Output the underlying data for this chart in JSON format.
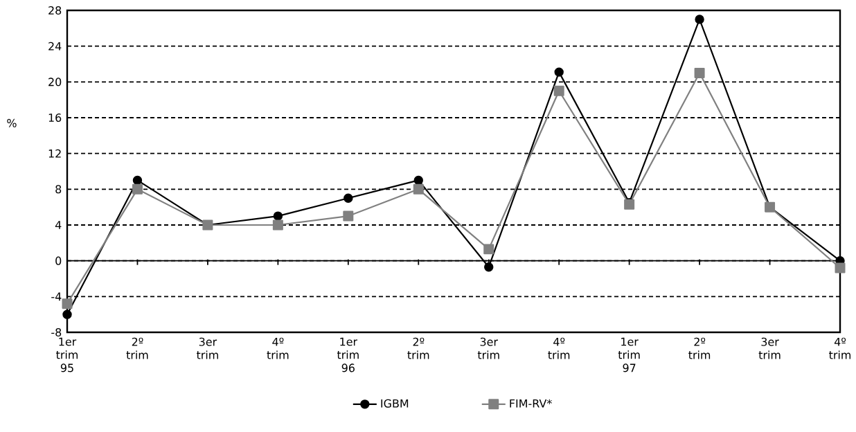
{
  "chart_data": {
    "type": "line",
    "ylabel": "%",
    "categories": [
      "1er trim 95",
      "2º trim",
      "3er trim",
      "4º trim",
      "1er trim 96",
      "2º trim",
      "3er trim",
      "4º trim",
      "1er trim 97",
      "2º trim",
      "3er trim",
      "4º trim"
    ],
    "series": [
      {
        "name": "IGBM",
        "color": "#000000",
        "marker": "circle",
        "values": [
          -6,
          9,
          4,
          5,
          7,
          9,
          -0.7,
          21.1,
          6.5,
          27,
          6,
          0
        ]
      },
      {
        "name": "FIM-RV*",
        "color": "#808080",
        "marker": "square",
        "values": [
          -4.8,
          8,
          4,
          4,
          5,
          8,
          1.3,
          19,
          6.3,
          21,
          6,
          -0.8
        ]
      }
    ],
    "ylim": [
      -8,
      28
    ],
    "yticks": [
      -8,
      -4,
      0,
      4,
      8,
      12,
      16,
      20,
      24,
      28
    ],
    "grid": "y",
    "legend": "bottom",
    "line_style": "solid"
  }
}
